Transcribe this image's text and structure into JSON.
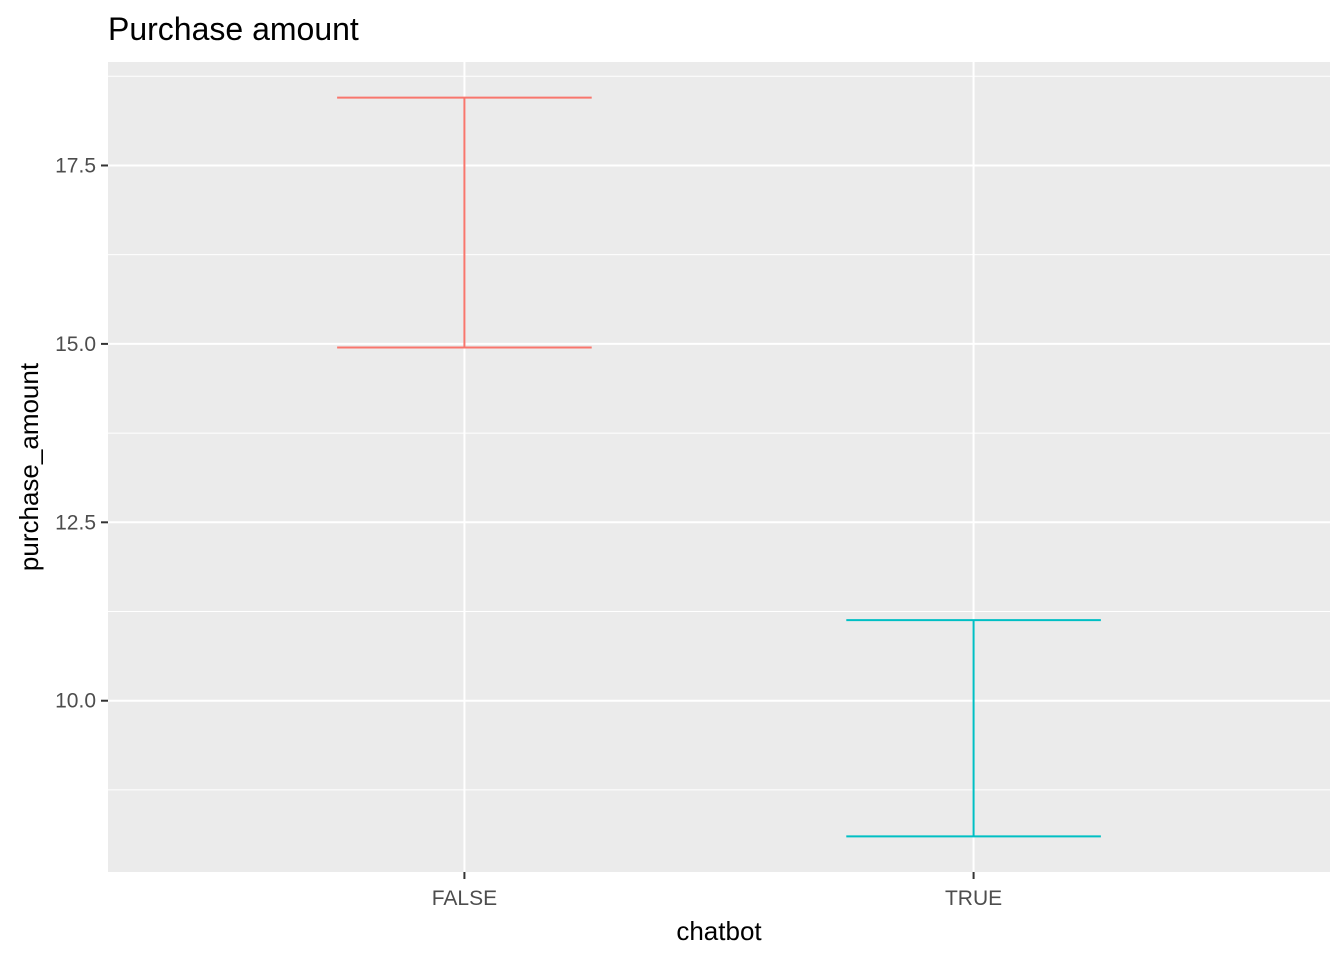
{
  "chart_data": {
    "type": "errorbar",
    "title": "Purchase amount",
    "xlabel": "chatbot",
    "ylabel": "purchase_amount",
    "categories": [
      "FALSE",
      "TRUE"
    ],
    "series": [
      {
        "category": "FALSE",
        "lower": 14.95,
        "upper": 18.45,
        "color": "#F8766D"
      },
      {
        "category": "TRUE",
        "lower": 8.1,
        "upper": 11.13,
        "color": "#00BFC4"
      }
    ],
    "ylim": [
      7.6,
      18.95
    ],
    "yticks": [
      10.0,
      12.5,
      15.0,
      17.5
    ],
    "ytick_labels": [
      "10.0",
      "12.5",
      "15.0",
      "17.5"
    ],
    "panel_background": "#EBEBEB",
    "grid_color": "#FFFFFF",
    "grid": true,
    "legend": "none"
  }
}
